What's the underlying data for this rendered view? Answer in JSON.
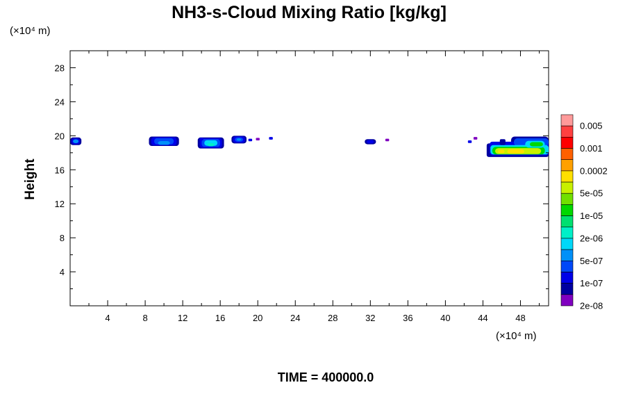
{
  "chart_data": {
    "type": "heatmap",
    "title": "NH3-s-Cloud Mixing Ratio [kg/kg]",
    "xlabel": "",
    "ylabel": "Height",
    "x_unit": "(×10⁴ m)",
    "y_unit": "(×10⁴ m)",
    "xlim": [
      0,
      51
    ],
    "ylim": [
      0,
      30
    ],
    "x_ticks": [
      4,
      8,
      12,
      16,
      20,
      24,
      28,
      32,
      36,
      40,
      44,
      48
    ],
    "y_ticks": [
      4,
      8,
      12,
      16,
      20,
      24,
      28
    ],
    "grid": false,
    "footer": "TIME = 400000.0",
    "colorbar": {
      "position": "right",
      "labels": [
        "0.005",
        "0.001",
        "0.0002",
        "5e-05",
        "1e-05",
        "2e-06",
        "5e-07",
        "1e-07",
        "2e-08"
      ],
      "colors": [
        "#ff9a9a",
        "#ff4040",
        "#ff0000",
        "#ff6000",
        "#ffa000",
        "#ffe000",
        "#c8f000",
        "#70e000",
        "#00d800",
        "#00e070",
        "#00f0c8",
        "#00d8f8",
        "#0090f8",
        "#0048f8",
        "#0000e8",
        "#0000a0",
        "#8000c0"
      ]
    },
    "regions": [
      {
        "x": [
          0.0,
          1.2
        ],
        "y": [
          18.9,
          19.8
        ],
        "level": "2e-08..5e-07"
      },
      {
        "x": [
          8.4,
          11.6
        ],
        "y": [
          18.8,
          19.9
        ],
        "level": "2e-08..5e-07"
      },
      {
        "x": [
          13.6,
          16.4
        ],
        "y": [
          18.5,
          19.8
        ],
        "level": "2e-08..2e-06"
      },
      {
        "x": [
          17.2,
          18.8
        ],
        "y": [
          19.1,
          20.0
        ],
        "level": "2e-08..5e-07"
      },
      {
        "x": [
          31.4,
          32.6
        ],
        "y": [
          19.0,
          19.6
        ],
        "level": "2e-08..1e-07"
      },
      {
        "x": [
          44.4,
          51.0
        ],
        "y": [
          17.5,
          19.9
        ],
        "level": "2e-08..0.0002"
      }
    ]
  }
}
